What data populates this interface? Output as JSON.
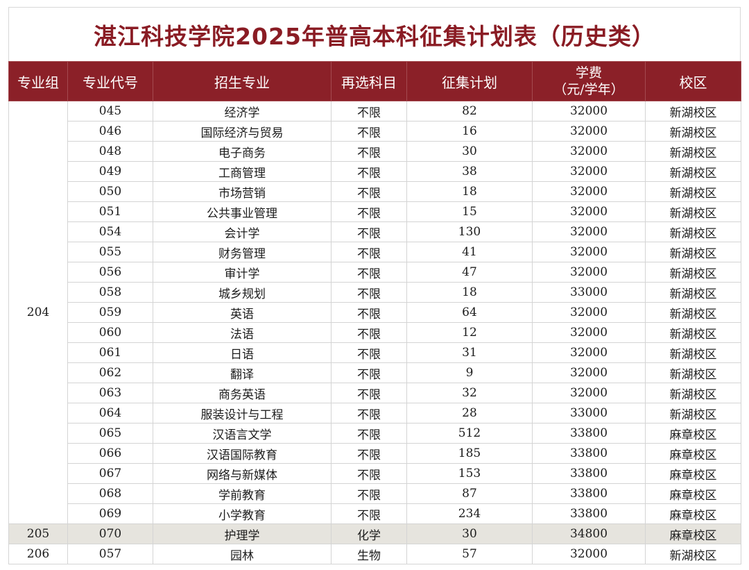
{
  "title": "湛江科技学院2025年普高本科征集计划表（历史类）",
  "colors": {
    "header_bg": "#8b2028",
    "title": "#8a1c24",
    "shade": "#e6e4de"
  },
  "headers": {
    "group": "专业组",
    "code": "专业代号",
    "major": "招生专业",
    "subject": "再选科目",
    "plan": "征集计划",
    "fee_line1": "学费",
    "fee_line2": "（元/学年）",
    "campus": "校区"
  },
  "groups": [
    {
      "group": "204",
      "rows": [
        {
          "code": "045",
          "major": "经济学",
          "subject": "不限",
          "plan": "82",
          "fee": "32000",
          "campus": "新湖校区"
        },
        {
          "code": "046",
          "major": "国际经济与贸易",
          "subject": "不限",
          "plan": "16",
          "fee": "32000",
          "campus": "新湖校区"
        },
        {
          "code": "048",
          "major": "电子商务",
          "subject": "不限",
          "plan": "30",
          "fee": "32000",
          "campus": "新湖校区"
        },
        {
          "code": "049",
          "major": "工商管理",
          "subject": "不限",
          "plan": "38",
          "fee": "32000",
          "campus": "新湖校区"
        },
        {
          "code": "050",
          "major": "市场营销",
          "subject": "不限",
          "plan": "18",
          "fee": "32000",
          "campus": "新湖校区"
        },
        {
          "code": "051",
          "major": "公共事业管理",
          "subject": "不限",
          "plan": "15",
          "fee": "32000",
          "campus": "新湖校区"
        },
        {
          "code": "054",
          "major": "会计学",
          "subject": "不限",
          "plan": "130",
          "fee": "32000",
          "campus": "新湖校区"
        },
        {
          "code": "055",
          "major": "财务管理",
          "subject": "不限",
          "plan": "41",
          "fee": "32000",
          "campus": "新湖校区"
        },
        {
          "code": "056",
          "major": "审计学",
          "subject": "不限",
          "plan": "47",
          "fee": "32000",
          "campus": "新湖校区"
        },
        {
          "code": "058",
          "major": "城乡规划",
          "subject": "不限",
          "plan": "18",
          "fee": "33000",
          "campus": "新湖校区"
        },
        {
          "code": "059",
          "major": "英语",
          "subject": "不限",
          "plan": "64",
          "fee": "32000",
          "campus": "新湖校区"
        },
        {
          "code": "060",
          "major": "法语",
          "subject": "不限",
          "plan": "12",
          "fee": "32000",
          "campus": "新湖校区"
        },
        {
          "code": "061",
          "major": "日语",
          "subject": "不限",
          "plan": "31",
          "fee": "32000",
          "campus": "新湖校区"
        },
        {
          "code": "062",
          "major": "翻译",
          "subject": "不限",
          "plan": "9",
          "fee": "32000",
          "campus": "新湖校区"
        },
        {
          "code": "063",
          "major": "商务英语",
          "subject": "不限",
          "plan": "32",
          "fee": "32000",
          "campus": "新湖校区"
        },
        {
          "code": "064",
          "major": "服装设计与工程",
          "subject": "不限",
          "plan": "28",
          "fee": "33000",
          "campus": "新湖校区"
        },
        {
          "code": "065",
          "major": "汉语言文学",
          "subject": "不限",
          "plan": "512",
          "fee": "33800",
          "campus": "麻章校区"
        },
        {
          "code": "066",
          "major": "汉语国际教育",
          "subject": "不限",
          "plan": "185",
          "fee": "33800",
          "campus": "麻章校区"
        },
        {
          "code": "067",
          "major": "网络与新媒体",
          "subject": "不限",
          "plan": "153",
          "fee": "33800",
          "campus": "麻章校区"
        },
        {
          "code": "068",
          "major": "学前教育",
          "subject": "不限",
          "plan": "87",
          "fee": "33800",
          "campus": "麻章校区"
        },
        {
          "code": "069",
          "major": "小学教育",
          "subject": "不限",
          "plan": "234",
          "fee": "33800",
          "campus": "麻章校区"
        }
      ]
    },
    {
      "group": "205",
      "shade": true,
      "rows": [
        {
          "code": "070",
          "major": "护理学",
          "subject": "化学",
          "plan": "30",
          "fee": "34800",
          "campus": "麻章校区"
        }
      ]
    },
    {
      "group": "206",
      "rows": [
        {
          "code": "057",
          "major": "园林",
          "subject": "生物",
          "plan": "57",
          "fee": "32000",
          "campus": "新湖校区"
        }
      ]
    }
  ]
}
